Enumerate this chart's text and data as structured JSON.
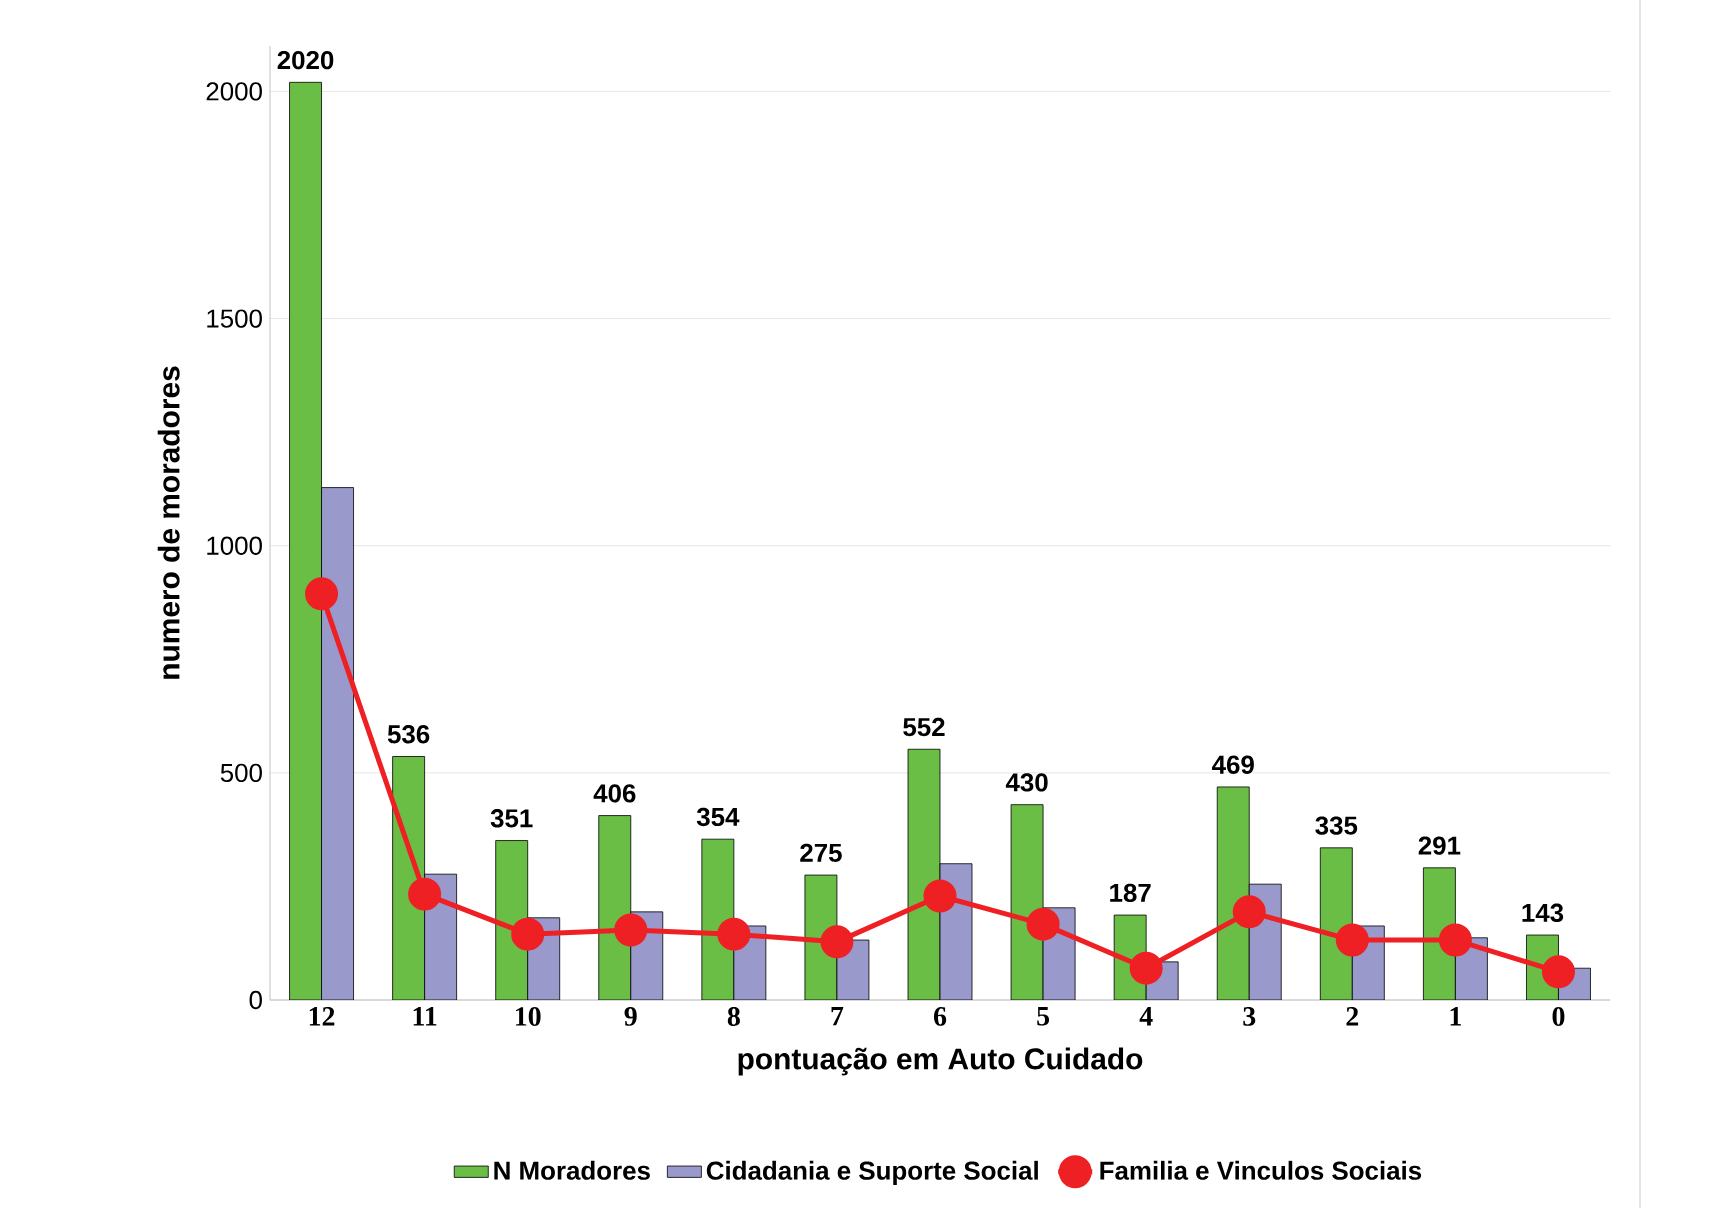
{
  "chart_data": {
    "type": "bar",
    "xlabel": "pontuação em Auto Cuidado",
    "ylabel": "numero de moradores",
    "categories": [
      "12",
      "11",
      "10",
      "9",
      "8",
      "7",
      "6",
      "5",
      "4",
      "3",
      "2",
      "1",
      "0"
    ],
    "series": [
      {
        "name": "N Moradores",
        "color": "#6abd45",
        "values": [
          2020,
          536,
          351,
          406,
          354,
          275,
          552,
          430,
          187,
          469,
          335,
          291,
          143
        ],
        "value_labels": [
          "2020",
          "536",
          "351",
          "406",
          "354",
          "275",
          "552",
          "430",
          "187",
          "469",
          "335",
          "291",
          "143"
        ]
      },
      {
        "name": "Cidadania e Suporte Social",
        "color": "#9999cc",
        "values": [
          1128,
          277,
          181,
          194,
          163,
          132,
          300,
          203,
          84,
          255,
          163,
          137,
          70
        ]
      },
      {
        "name": "Familia e Vinculos Sociais",
        "type": "line",
        "color": "#ee2024",
        "marker": "circle",
        "line_style": "solid",
        "values": [
          894,
          233,
          145,
          154,
          145,
          128,
          229,
          167,
          70,
          194,
          132,
          132,
          62
        ]
      }
    ],
    "ylim": [
      0,
      2100
    ],
    "yticks": [
      0,
      500,
      1000,
      1500,
      2000
    ],
    "grid": "y",
    "legend": "bottom"
  }
}
